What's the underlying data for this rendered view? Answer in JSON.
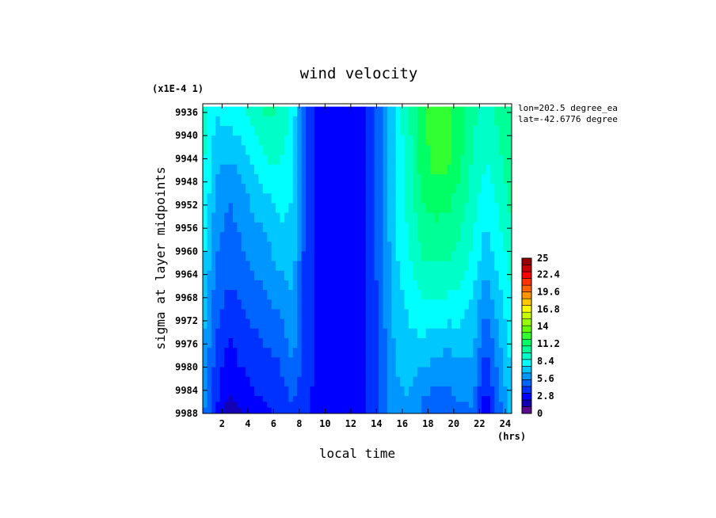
{
  "chart_data": {
    "type": "heatmap",
    "title": "wind velocity",
    "xlabel": "local time",
    "ylabel": "sigma at layer midpoints",
    "y_scale_label": "(x1E-4 1)",
    "x_unit_label": "(hrs)",
    "annotations": [
      "lon=202.5 degree_ea",
      "lat=-42.6776 degree"
    ],
    "x_ticks": [
      "2",
      "4",
      "6",
      "8",
      "10",
      "12",
      "14",
      "16",
      "18",
      "20",
      "22",
      "24"
    ],
    "y_ticks": [
      "9936",
      "9940",
      "9944",
      "9948",
      "9952",
      "9956",
      "9960",
      "9964",
      "9968",
      "9972",
      "9976",
      "9980",
      "9984",
      "9988"
    ],
    "xlim": [
      0.5,
      24.5
    ],
    "ylim": [
      9934.5,
      9988
    ],
    "colorbar": {
      "ticks": [
        "0",
        "2.8",
        "5.6",
        "8.4",
        "11.2",
        "14",
        "16.8",
        "19.6",
        "22.4",
        "25"
      ],
      "range": [
        0,
        25
      ],
      "colors": [
        "#5a0a8c",
        "#1400b4",
        "#0000ff",
        "#0032ff",
        "#0064ff",
        "#0096ff",
        "#00c8ff",
        "#00ffff",
        "#00ffc8",
        "#00ff96",
        "#00ff64",
        "#32ff32",
        "#64ff00",
        "#96ff00",
        "#c8ff00",
        "#ffff00",
        "#ffc800",
        "#ff9600",
        "#ff6400",
        "#ff3200",
        "#ff0000",
        "#c80000",
        "#960000"
      ]
    },
    "x": [
      0.5,
      1.5,
      2.5,
      3.5,
      4.5,
      5.5,
      6.5,
      7.5,
      8.5,
      9.5,
      10.5,
      11.5,
      12.5,
      13.5,
      14.5,
      15.5,
      16.5,
      17.5,
      18.5,
      19.5,
      20.5,
      21.5,
      22.5,
      23.5,
      24.5
    ],
    "y": [
      9935,
      9940,
      9945,
      9950,
      9955,
      9960,
      9965,
      9970,
      9975,
      9980,
      9985,
      9988
    ],
    "values": [
      [
        9.4,
        7.8,
        8.2,
        8.6,
        9.5,
        10.2,
        9.8,
        8.4,
        4.2,
        3.0,
        3.0,
        3.0,
        3.0,
        3.4,
        5.6,
        8.0,
        9.5,
        11.8,
        12.4,
        12.3,
        11.6,
        10.0,
        9.4,
        10.2,
        11.0
      ],
      [
        9.2,
        7.2,
        7.4,
        7.8,
        8.6,
        9.4,
        9.2,
        8.1,
        4.1,
        3.0,
        3.0,
        3.0,
        3.0,
        3.4,
        5.6,
        8.0,
        9.4,
        11.6,
        12.4,
        12.3,
        11.3,
        9.8,
        9.0,
        9.8,
        10.8
      ],
      [
        9.0,
        6.8,
        6.4,
        6.8,
        7.8,
        8.6,
        8.6,
        7.8,
        4.0,
        3.0,
        3.0,
        3.0,
        3.0,
        3.4,
        5.6,
        7.9,
        9.3,
        11.4,
        12.3,
        12.2,
        11.0,
        9.6,
        8.6,
        9.4,
        10.6
      ],
      [
        8.8,
        6.4,
        5.6,
        6.2,
        7.0,
        7.6,
        8.0,
        7.6,
        3.9,
        3.0,
        3.0,
        3.0,
        3.0,
        3.4,
        5.5,
        7.8,
        9.1,
        11.0,
        11.6,
        11.4,
        10.5,
        9.3,
        8.2,
        9.0,
        10.2
      ],
      [
        8.4,
        6.0,
        5.0,
        5.7,
        6.4,
        6.8,
        7.6,
        7.4,
        3.8,
        3.0,
        3.0,
        3.0,
        3.0,
        3.4,
        5.5,
        7.7,
        8.9,
        10.4,
        10.8,
        10.6,
        10.0,
        9.0,
        7.6,
        8.6,
        9.8
      ],
      [
        8.0,
        5.6,
        4.8,
        5.3,
        5.8,
        6.2,
        7.2,
        7.2,
        3.8,
        3.0,
        3.0,
        3.0,
        3.0,
        3.4,
        5.4,
        7.5,
        8.6,
        9.9,
        10.1,
        10.0,
        9.6,
        8.6,
        7.0,
        8.1,
        9.4
      ],
      [
        7.6,
        5.2,
        4.4,
        4.7,
        5.3,
        5.7,
        6.3,
        6.8,
        3.7,
        3.0,
        3.0,
        3.0,
        3.0,
        3.4,
        5.3,
        7.3,
        8.2,
        9.2,
        9.3,
        9.2,
        8.9,
        8.0,
        6.2,
        7.6,
        9.0
      ],
      [
        7.2,
        4.8,
        3.8,
        4.3,
        4.7,
        5.1,
        5.6,
        6.4,
        3.7,
        3.0,
        3.0,
        3.0,
        3.0,
        3.4,
        5.2,
        7.0,
        7.8,
        8.4,
        8.4,
        8.2,
        8.0,
        7.4,
        5.4,
        7.0,
        8.6
      ],
      [
        6.8,
        4.4,
        3.2,
        3.8,
        4.2,
        4.5,
        4.9,
        6.0,
        3.6,
        3.0,
        3.0,
        3.0,
        3.0,
        3.4,
        5.1,
        6.8,
        7.3,
        7.6,
        7.3,
        7.0,
        7.3,
        6.8,
        4.6,
        6.4,
        8.2
      ],
      [
        6.4,
        4.0,
        2.6,
        3.3,
        3.7,
        3.9,
        4.3,
        5.4,
        3.6,
        3.0,
        3.0,
        3.0,
        3.0,
        3.4,
        5.0,
        6.6,
        6.9,
        6.6,
        6.1,
        5.8,
        6.4,
        6.2,
        3.8,
        5.8,
        7.8
      ],
      [
        6.0,
        3.6,
        2.0,
        2.6,
        3.2,
        3.4,
        3.8,
        4.6,
        3.5,
        3.0,
        3.0,
        3.0,
        3.0,
        3.4,
        4.9,
        6.3,
        6.6,
        5.6,
        5.0,
        5.2,
        5.6,
        5.6,
        2.8,
        5.2,
        7.4
      ],
      [
        5.8,
        3.4,
        1.6,
        2.2,
        2.8,
        3.1,
        3.4,
        4.1,
        3.5,
        3.0,
        3.0,
        3.0,
        3.0,
        3.4,
        4.8,
        6.2,
        6.4,
        5.2,
        4.6,
        4.9,
        5.2,
        5.3,
        2.4,
        4.8,
        7.2
      ]
    ]
  }
}
